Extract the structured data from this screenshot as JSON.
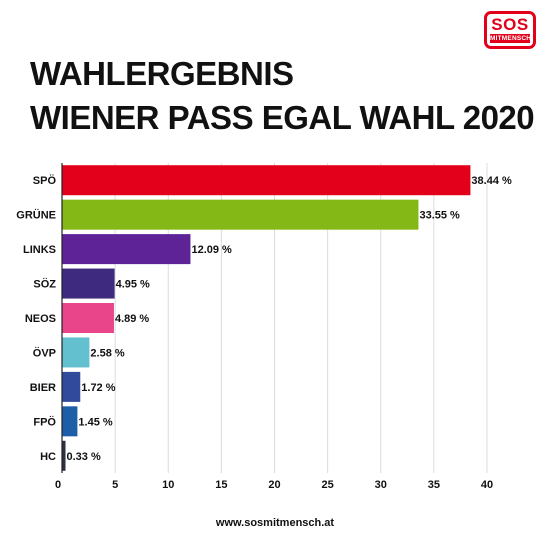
{
  "logo": {
    "main": "SOS",
    "sub": "MITMENSCH"
  },
  "title_lines": [
    "WAHLERGEBNIS",
    "WIENER PASS EGAL WAHL 2020"
  ],
  "footer": "www.sosmitmensch.at",
  "chart_data": {
    "type": "bar",
    "orientation": "horizontal",
    "categories": [
      "SPÖ",
      "GRÜNE",
      "LINKS",
      "SÖZ",
      "NEOS",
      "ÖVP",
      "BIER",
      "FPÖ",
      "HC"
    ],
    "values": [
      38.44,
      33.55,
      12.09,
      4.95,
      4.89,
      2.58,
      1.72,
      1.45,
      0.33
    ],
    "value_labels": [
      "38.44 %",
      "33.55 %",
      "12.09 %",
      "4.95 %",
      "4.89 %",
      "2.58 %",
      "1.72 %",
      "1.45 %",
      "0.33 %"
    ],
    "colors": [
      "#e3001b",
      "#84b816",
      "#5e2396",
      "#3e2a7e",
      "#e8458b",
      "#63c1cf",
      "#314a9c",
      "#1d5ea8",
      "#2b3340"
    ],
    "xlim": [
      0,
      40
    ],
    "x_ticks": [
      0,
      5,
      10,
      15,
      20,
      25,
      30,
      35,
      40
    ],
    "grid": true
  }
}
